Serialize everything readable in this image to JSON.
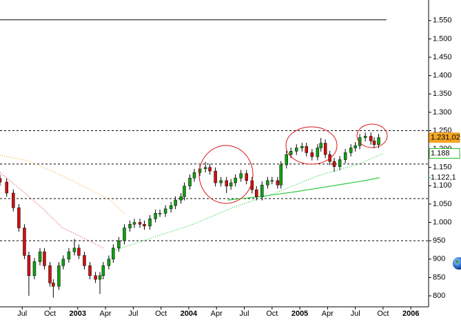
{
  "chart_data": {
    "type": "candlestick",
    "xlim": [
      2002.3,
      2006.16
    ],
    "ylim": [
      770,
      1606
    ],
    "xticks": [
      {
        "value": 2002.5,
        "label": "Jul"
      },
      {
        "value": 2002.75,
        "label": "Oct"
      },
      2003,
      {
        "value": 2003.25,
        "label": "Apr"
      },
      {
        "value": 2003.5,
        "label": "Jul"
      },
      {
        "value": 2003.75,
        "label": "Oct"
      },
      2004,
      {
        "value": 2004.25,
        "label": "Apr"
      },
      {
        "value": 2004.5,
        "label": "Jul"
      },
      {
        "value": 2004.75,
        "label": "Oct"
      },
      2005,
      {
        "value": 2005.25,
        "label": "Apr"
      },
      {
        "value": 2005.5,
        "label": "Jul"
      },
      {
        "value": 2005.75,
        "label": "Oct"
      },
      2006
    ],
    "yticks": [
      {
        "value": 1550,
        "label": "1.550"
      },
      {
        "value": 1500,
        "label": "1.500"
      },
      {
        "value": 1450,
        "label": "1.450"
      },
      {
        "value": 1400,
        "label": "1.400"
      },
      {
        "value": 1350,
        "label": "1.350"
      },
      {
        "value": 1300,
        "label": "1.300"
      },
      {
        "value": 1250,
        "label": "1.250"
      },
      {
        "value": 1200,
        "label": "1.200"
      },
      {
        "value": 1150,
        "label": "1.150"
      },
      {
        "value": 1100,
        "label": "1.100"
      },
      {
        "value": 1050,
        "label": "1.050"
      },
      {
        "value": 1000,
        "label": "1.000"
      },
      950,
      900,
      850,
      800
    ],
    "up_color": "#10a010",
    "down_color": "#d01010",
    "wick_color": "#000000",
    "x": [
      2002.3,
      2002.36,
      2002.42,
      2002.47,
      2002.52,
      2002.56,
      2002.61,
      2002.66,
      2002.7,
      2002.75,
      2002.78,
      2002.83,
      2002.87,
      2002.92,
      2002.97,
      2003.01,
      2003.06,
      2003.11,
      2003.16,
      2003.2,
      2003.23,
      2003.28,
      2003.32,
      2003.37,
      2003.42,
      2003.47,
      2003.51,
      2003.56,
      2003.6,
      2003.65,
      2003.7,
      2003.74,
      2003.79,
      2003.84,
      2003.88,
      2003.93,
      2003.96,
      2004.01,
      2004.05,
      2004.1,
      2004.15,
      2004.19,
      2004.24,
      2004.29,
      2004.34,
      2004.38,
      2004.42,
      2004.47,
      2004.52,
      2004.57,
      2004.61,
      2004.66,
      2004.71,
      2004.75,
      2004.8,
      2004.83,
      2004.88,
      2004.92,
      2004.97,
      2005.02,
      2005.06,
      2005.11,
      2005.16,
      2005.19,
      2005.23,
      2005.27,
      2005.31,
      2005.36,
      2005.41,
      2005.46,
      2005.5,
      2005.54,
      2005.59,
      2005.64,
      2005.67,
      2005.71
    ],
    "open": [
      1120,
      1110,
      1080,
      1040,
      985,
      910,
      855,
      893,
      920,
      882,
      835,
      826,
      882,
      900,
      920,
      930,
      910,
      882,
      855,
      845,
      855,
      882,
      900,
      930,
      950,
      985,
      995,
      1000,
      995,
      990,
      1010,
      1025,
      1025,
      1037,
      1046,
      1061,
      1070,
      1099,
      1121,
      1136,
      1146,
      1150,
      1140,
      1108,
      1114,
      1099,
      1108,
      1121,
      1133,
      1114,
      1089,
      1070,
      1102,
      1114,
      1114,
      1102,
      1157,
      1185,
      1194,
      1203,
      1207,
      1190,
      1179,
      1203,
      1216,
      1185,
      1166,
      1152,
      1171,
      1190,
      1203,
      1209,
      1231,
      1235,
      1222,
      1212
    ],
    "high": [
      1130,
      1120,
      1090,
      1050,
      995,
      920,
      903,
      930,
      930,
      892,
      845,
      892,
      910,
      930,
      955,
      940,
      920,
      892,
      865,
      865,
      892,
      910,
      940,
      960,
      995,
      1005,
      1010,
      1010,
      1005,
      1020,
      1035,
      1035,
      1047,
      1056,
      1071,
      1080,
      1109,
      1131,
      1146,
      1156,
      1165,
      1160,
      1150,
      1124,
      1124,
      1118,
      1131,
      1143,
      1143,
      1124,
      1099,
      1112,
      1124,
      1124,
      1124,
      1167,
      1195,
      1204,
      1213,
      1217,
      1217,
      1200,
      1213,
      1230,
      1226,
      1195,
      1176,
      1181,
      1200,
      1213,
      1219,
      1241,
      1245,
      1245,
      1232,
      1241
    ],
    "low": [
      1100,
      1070,
      1030,
      975,
      900,
      800,
      845,
      883,
      872,
      825,
      795,
      816,
      872,
      890,
      910,
      900,
      872,
      845,
      835,
      805,
      845,
      872,
      890,
      920,
      940,
      975,
      985,
      985,
      980,
      980,
      1000,
      1015,
      1015,
      1027,
      1036,
      1051,
      1060,
      1089,
      1111,
      1126,
      1136,
      1130,
      1098,
      1098,
      1080,
      1089,
      1098,
      1111,
      1104,
      1079,
      1060,
      1060,
      1092,
      1104,
      1092,
      1092,
      1147,
      1175,
      1184,
      1193,
      1180,
      1169,
      1169,
      1193,
      1175,
      1156,
      1138,
      1142,
      1161,
      1180,
      1193,
      1199,
      1221,
      1212,
      1202,
      1202
    ],
    "close": [
      1110,
      1080,
      1040,
      985,
      910,
      855,
      893,
      920,
      882,
      835,
      826,
      882,
      900,
      920,
      930,
      910,
      882,
      855,
      845,
      855,
      882,
      900,
      930,
      950,
      985,
      995,
      1000,
      995,
      990,
      1010,
      1025,
      1025,
      1037,
      1046,
      1061,
      1070,
      1099,
      1121,
      1136,
      1146,
      1150,
      1140,
      1108,
      1114,
      1099,
      1108,
      1121,
      1133,
      1114,
      1089,
      1070,
      1102,
      1114,
      1114,
      1102,
      1157,
      1185,
      1194,
      1203,
      1207,
      1190,
      1179,
      1203,
      1216,
      1185,
      1166,
      1152,
      1171,
      1190,
      1203,
      1209,
      1231,
      1235,
      1222,
      1212,
      1231.02
    ],
    "lines": [
      {
        "color": "#f5b041",
        "dash": "dotted",
        "x": [
          2002.3,
          2002.55,
          2002.8,
          2003.05,
          2003.29,
          2003.42
        ],
        "values": [
          1183,
          1168,
          1136,
          1099,
          1061,
          1024
        ]
      },
      {
        "color": "#e74c3c",
        "dash": "dotted",
        "x": [
          2002.3,
          2002.49,
          2002.67,
          2002.86,
          2003.05,
          2003.23
        ],
        "values": [
          1136,
          1089,
          1042,
          986,
          958,
          930
        ]
      },
      {
        "color": "#2ecc40",
        "dash": "dotted",
        "x": [
          2003.29,
          2003.67,
          2004.04,
          2004.41,
          2004.78,
          2005.16,
          2005.53,
          2005.75
        ],
        "values": [
          920,
          958,
          995,
          1042,
          1080,
          1127,
          1159,
          1188
        ]
      },
      {
        "color": "#2ecc40",
        "dash": "solid",
        "x": [
          2004.35,
          2004.66,
          2004.97,
          2005.28,
          2005.59,
          2005.72
        ],
        "values": [
          1061,
          1071,
          1084,
          1099,
          1114,
          1122.1
        ]
      }
    ],
    "hlines": [
      {
        "value": 1552,
        "dash": "solid",
        "end": 2005.78
      },
      {
        "value": 1250,
        "dash": "dashed",
        "end": 2006.16
      },
      {
        "value": 1159,
        "dash": "dashed",
        "end": 2006.16
      },
      {
        "value": 1065,
        "dash": "dashed",
        "end": 2006.16
      },
      {
        "value": 950,
        "dash": "dashed",
        "end": 2006.16
      }
    ],
    "price_tags": [
      {
        "value": 1231.02,
        "label": "1.231,02",
        "style": "filled",
        "color": "#f5a623"
      },
      {
        "value": 1188,
        "label": "1.188",
        "style": "boxed",
        "color": "#22bb22"
      },
      {
        "value": 1122.1,
        "label": "1.122,1",
        "style": "plain",
        "color": "#22bb22"
      }
    ]
  }
}
